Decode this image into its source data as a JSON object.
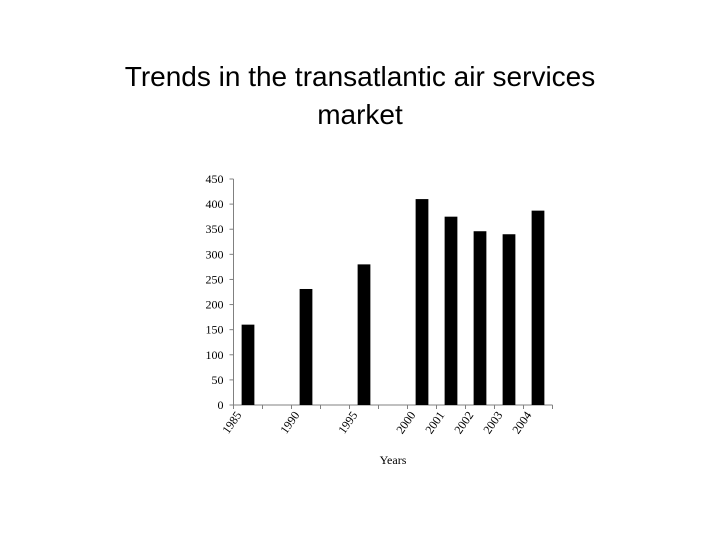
{
  "chart_data": {
    "type": "bar",
    "title": "Trends in the transatlantic air services market",
    "x_label": "Years",
    "categories": [
      "1985",
      null,
      "1990",
      null,
      "1995",
      null,
      "2000",
      "2001",
      "2002",
      "2003",
      "2004"
    ],
    "values": [
      160,
      null,
      231,
      null,
      280,
      null,
      410,
      375,
      346,
      340,
      387
    ],
    "color": "#000000",
    "ylim": [
      0,
      450
    ],
    "yticks": [
      0,
      50,
      100,
      150,
      200,
      250,
      300,
      350,
      400,
      450
    ],
    "grid": false
  }
}
